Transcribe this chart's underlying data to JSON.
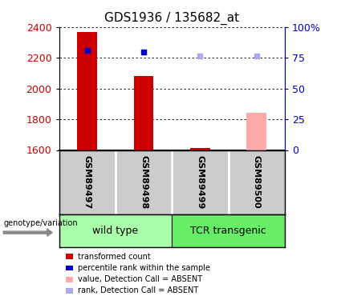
{
  "title": "GDS1936 / 135682_at",
  "samples": [
    "GSM89497",
    "GSM89498",
    "GSM89499",
    "GSM89500"
  ],
  "bar_values": [
    2370,
    2080,
    1613,
    1840
  ],
  "bar_colors": [
    "#cc0000",
    "#cc0000",
    "#cc0000",
    "#ffaaaa"
  ],
  "dot_values": [
    2250,
    2240,
    2210,
    2210
  ],
  "dot_colors": [
    "#0000cc",
    "#0000cc",
    "#aaaaee",
    "#aaaaee"
  ],
  "dot_sizes": [
    22,
    22,
    18,
    18
  ],
  "ymin": 1600,
  "ymax": 2400,
  "yticks": [
    1600,
    1800,
    2000,
    2200,
    2400
  ],
  "y2min": 0,
  "y2max": 100,
  "y2ticks": [
    0,
    25,
    50,
    75,
    100
  ],
  "y_color": "#cc0000",
  "y2_color": "#0000cc",
  "groups": [
    {
      "label": "wild type",
      "samples": [
        0,
        1
      ],
      "color": "#aaffaa"
    },
    {
      "label": "TCR transgenic",
      "samples": [
        2,
        3
      ],
      "color": "#66ee66"
    }
  ],
  "genotype_label": "genotype/variation",
  "legend_items": [
    {
      "color": "#cc0000",
      "label": "transformed count"
    },
    {
      "color": "#0000cc",
      "label": "percentile rank within the sample"
    },
    {
      "color": "#ffaaaa",
      "label": "value, Detection Call = ABSENT"
    },
    {
      "color": "#aaaaee",
      "label": "rank, Detection Call = ABSENT"
    }
  ],
  "bar_width": 0.35,
  "sample_box_color": "#cccccc",
  "background_color": "#ffffff",
  "plot_bg_color": "#ffffff",
  "grid_color": "#000000",
  "title_fontsize": 11,
  "tick_fontsize": 9,
  "sample_label_fontsize": 8,
  "group_label_fontsize": 9,
  "legend_fontsize": 7
}
